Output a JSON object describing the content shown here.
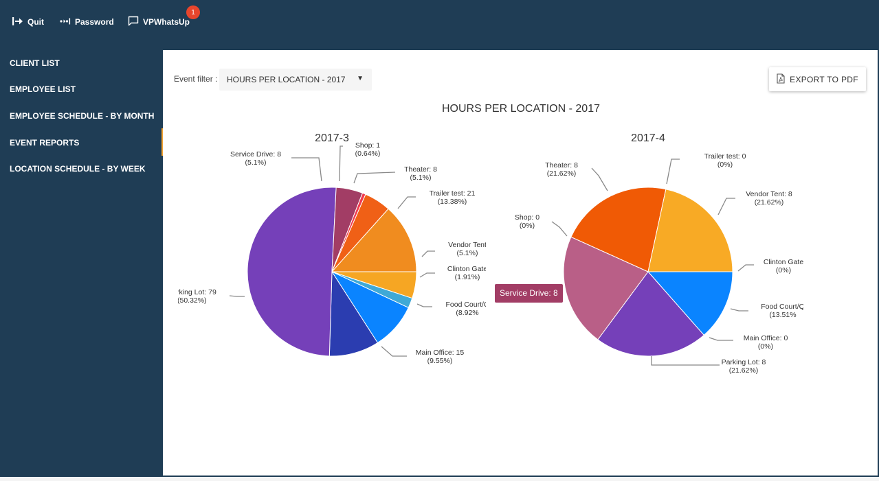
{
  "topbar": {
    "quit_label": "Quit",
    "password_label": "Password",
    "whatsup_label": "VPWhatsUp",
    "whatsup_badge": "1"
  },
  "sidebar": {
    "items": [
      {
        "label": "CLIENT LIST"
      },
      {
        "label": "EMPLOYEE LIST"
      },
      {
        "label": "EMPLOYEE SCHEDULE - BY MONTH"
      },
      {
        "label": "EVENT REPORTS",
        "active": true
      },
      {
        "label": "LOCATION SCHEDULE - BY WEEK"
      }
    ]
  },
  "filter": {
    "label": "Event filter :",
    "value": "HOURS PER LOCATION - 2017"
  },
  "export": {
    "label": "EXPORT TO PDF"
  },
  "tooltip": {
    "text": "Service Drive: 8"
  },
  "colors": {
    "panel": "#1f3d55",
    "badge": "#e8452c",
    "active_marker": "#f3a230",
    "tooltip": "#a23d65"
  },
  "chart_data": {
    "title": "HOURS PER LOCATION - 2017",
    "charts": [
      {
        "type": "pie",
        "title": "2017-3",
        "slices": [
          {
            "name": "Vendor Tent",
            "value": 8,
            "percent": "5.1%",
            "color": "#f6a623"
          },
          {
            "name": "Clinton Gate",
            "value": 3,
            "percent": "1.91%",
            "color": "#3fa9d6"
          },
          {
            "name": "Food Court/C",
            "value": 14,
            "percent": "8.92%",
            "color": "#0a84ff"
          },
          {
            "name": "Main Office",
            "value": 15,
            "percent": "9.55%",
            "color": "#2b3db0"
          },
          {
            "name": "rking Lot",
            "value": 79,
            "percent": "50.32%",
            "color": "#7540b9"
          },
          {
            "name": "Service Drive",
            "value": 8,
            "percent": "5.1%",
            "color": "#a23d65"
          },
          {
            "name": "Shop",
            "value": 1,
            "percent": "0.64%",
            "color": "#f03b4f"
          },
          {
            "name": "Theater",
            "value": 8,
            "percent": "5.1%",
            "color": "#f06016"
          },
          {
            "name": "Trailer test",
            "value": 21,
            "percent": "13.38%",
            "color": "#f08c1f"
          }
        ],
        "label_text": [
          {
            "key": "Vendor Tent",
            "line1": "Vendor Tent",
            "line2": "(5.1%)"
          },
          {
            "key": "Clinton Gate",
            "line1": "Clinton Gate",
            "line2": "(1.91%)"
          },
          {
            "key": "Food Court/C",
            "line1": "Food Court/C",
            "line2": "(8.92%"
          },
          {
            "key": "Main Office",
            "line1": "Main Office: 15",
            "line2": "(9.55%)"
          },
          {
            "key": "rking Lot",
            "line1": "rking Lot: 79",
            "line2": "(50.32%)"
          },
          {
            "key": "Service Drive",
            "line1": "Service Drive: 8",
            "line2": "(5.1%)"
          },
          {
            "key": "Shop",
            "line1": "Shop: 1",
            "line2": "(0.64%)"
          },
          {
            "key": "Theater",
            "line1": "Theater: 8",
            "line2": "(5.1%)"
          },
          {
            "key": "Trailer test",
            "line1": "Trailer test: 21",
            "line2": "(13.38%)"
          }
        ]
      },
      {
        "type": "pie",
        "title": "2017-4",
        "slices": [
          {
            "name": "Clinton Gate",
            "value": 0,
            "percent": "0%",
            "color": "#3fa9d6"
          },
          {
            "name": "Food Court/Q",
            "value": 5,
            "percent": "13.51%",
            "color": "#0a84ff"
          },
          {
            "name": "Main Office",
            "value": 0,
            "percent": "0%",
            "color": "#2b3db0"
          },
          {
            "name": "Parking Lot",
            "value": 8,
            "percent": "21.62%",
            "color": "#7540b9"
          },
          {
            "name": "Service Drive",
            "value": 8,
            "percent": "21.62%",
            "color": "#b95f87"
          },
          {
            "name": "Shop",
            "value": 0,
            "percent": "0%",
            "color": "#f03b4f"
          },
          {
            "name": "Theater",
            "value": 8,
            "percent": "21.62%",
            "color": "#f05a05"
          },
          {
            "name": "Trailer test",
            "value": 0,
            "percent": "0%",
            "color": "#f08c1f"
          },
          {
            "name": "Vendor Tent",
            "value": 8,
            "percent": "21.62%",
            "color": "#f8aa25"
          }
        ],
        "label_text": [
          {
            "key": "Clinton Gate",
            "line1": "Clinton Gate",
            "line2": "(0%)"
          },
          {
            "key": "Food Court/Q",
            "line1": "Food Court/Q",
            "line2": "(13.51%"
          },
          {
            "key": "Main Office",
            "line1": "Main Office: 0",
            "line2": "(0%)"
          },
          {
            "key": "Parking Lot",
            "line1": "Parking Lot: 8",
            "line2": "(21.62%)"
          },
          {
            "key": "Shop",
            "line1": "Shop: 0",
            "line2": "(0%)"
          },
          {
            "key": "Theater",
            "line1": "Theater: 8",
            "line2": "(21.62%)"
          },
          {
            "key": "Trailer test",
            "line1": "Trailer test: 0",
            "line2": "(0%)"
          },
          {
            "key": "Vendor Tent",
            "line1": "Vendor Tent: 8",
            "line2": "(21.62%)"
          }
        ]
      }
    ]
  }
}
